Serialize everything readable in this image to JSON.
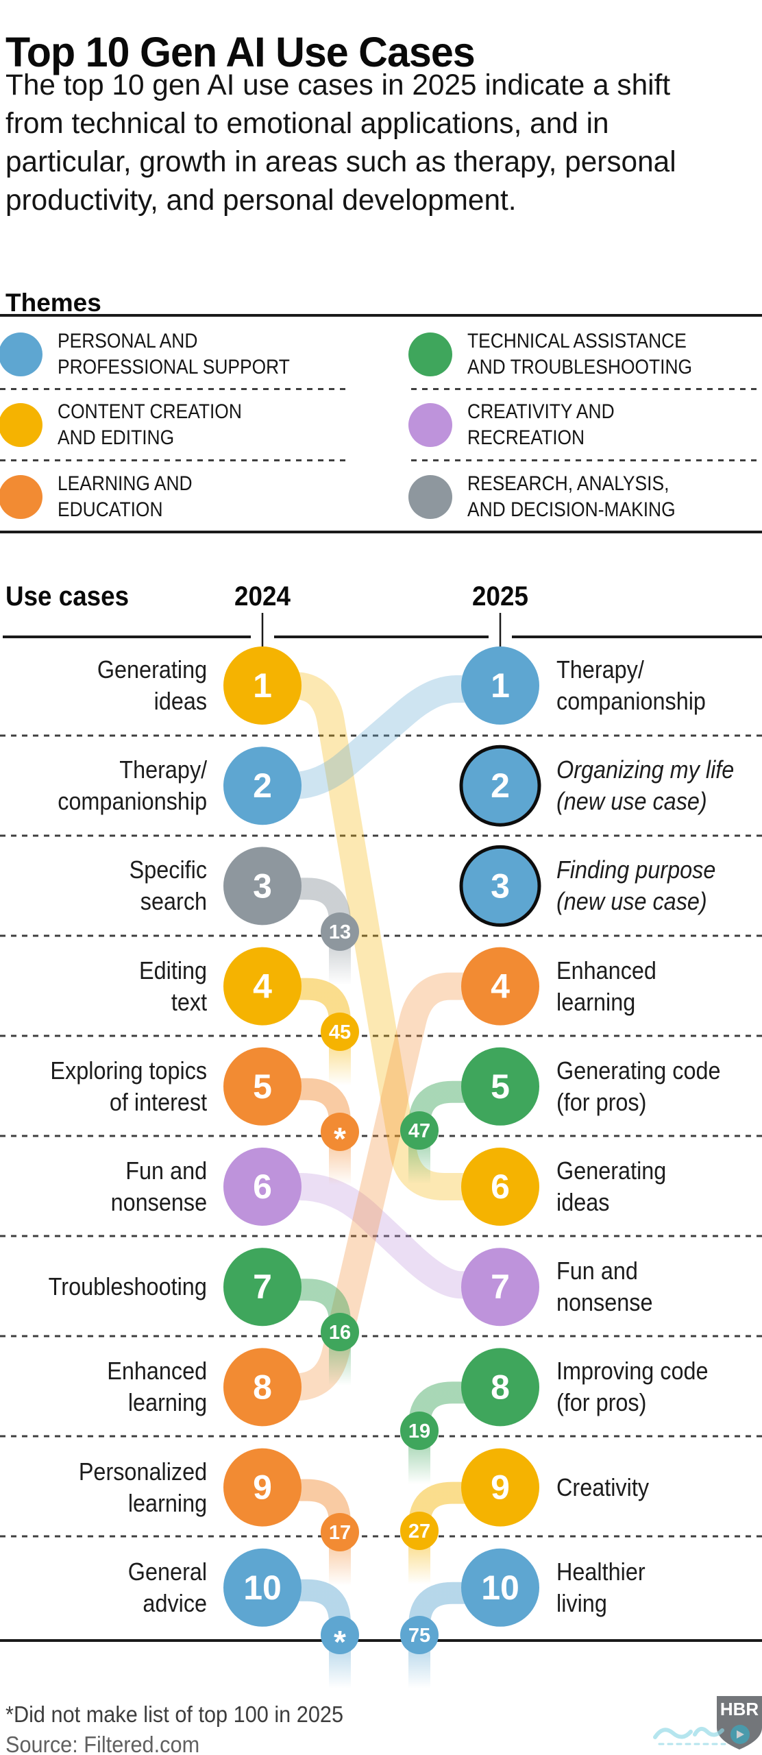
{
  "page": {
    "title": "Top 10 Gen AI Use Cases",
    "intro_lines": [
      "The top 10 gen AI use cases in 2025 indicate a shift",
      "from technical to emotional applications, and in",
      "particular, growth in areas such as therapy, personal",
      "productivity, and personal development."
    ],
    "themes_heading": "Themes",
    "footnote": "*Did not make list of top 100 in 2025",
    "source": "Source: Filtered.com",
    "logo_text": "HBR"
  },
  "legend": {
    "items": [
      {
        "line1": "PERSONAL AND",
        "line2": "PROFESSIONAL SUPPORT",
        "theme": "personal"
      },
      {
        "line1": "CONTENT CREATION",
        "line2": "AND EDITING",
        "theme": "content"
      },
      {
        "line1": "LEARNING AND",
        "line2": "EDUCATION",
        "theme": "learning"
      },
      {
        "line1": "TECHNICAL ASSISTANCE",
        "line2": "AND TROUBLESHOOTING",
        "theme": "technical"
      },
      {
        "line1": "CREATIVITY AND",
        "line2": "RECREATION",
        "theme": "creativity"
      },
      {
        "line1": "RESEARCH, ANALYSIS,",
        "line2": "AND DECISION-MAKING",
        "theme": "research"
      }
    ]
  },
  "chart_data": {
    "type": "slope-bump-ranking",
    "title": "Top 10 Gen AI Use Cases",
    "columns": {
      "label": "Use cases",
      "left_year": "2024",
      "right_year": "2025"
    },
    "theme_colors": {
      "personal": "#5EA6D1",
      "content": "#F5B301",
      "learning": "#F28B33",
      "technical": "#3FA65C",
      "creativity": "#BE93DB",
      "research": "#8E979E"
    },
    "left_2024": [
      {
        "rank": 1,
        "label_lines": [
          "Generating",
          "ideas"
        ],
        "theme": "content",
        "moved_to_2025_rank": 6
      },
      {
        "rank": 2,
        "label_lines": [
          "Therapy/",
          "companionship"
        ],
        "theme": "personal",
        "moved_to_2025_rank": 1
      },
      {
        "rank": 3,
        "label_lines": [
          "Specific",
          "search"
        ],
        "theme": "research",
        "fell_to_2025": "13"
      },
      {
        "rank": 4,
        "label_lines": [
          "Editing",
          "text"
        ],
        "theme": "content",
        "fell_to_2025": "45"
      },
      {
        "rank": 5,
        "label_lines": [
          "Exploring topics",
          "of interest"
        ],
        "theme": "learning",
        "fell_to_2025": "*"
      },
      {
        "rank": 6,
        "label_lines": [
          "Fun and",
          "nonsense"
        ],
        "theme": "creativity",
        "moved_to_2025_rank": 7
      },
      {
        "rank": 7,
        "label_lines": [
          "Troubleshooting"
        ],
        "theme": "technical",
        "fell_to_2025": "16"
      },
      {
        "rank": 8,
        "label_lines": [
          "Enhanced",
          "learning"
        ],
        "theme": "learning",
        "moved_to_2025_rank": 4
      },
      {
        "rank": 9,
        "label_lines": [
          "Personalized",
          "learning"
        ],
        "theme": "learning",
        "fell_to_2025": "17"
      },
      {
        "rank": 10,
        "label_lines": [
          "General",
          "advice"
        ],
        "theme": "personal",
        "fell_to_2025": "*"
      }
    ],
    "right_2025": [
      {
        "rank": 1,
        "label_lines": [
          "Therapy/",
          "companionship"
        ],
        "theme": "personal"
      },
      {
        "rank": 2,
        "label_lines": [
          "Organizing my life",
          "(new use case)"
        ],
        "theme": "personal",
        "new_use_case": true
      },
      {
        "rank": 3,
        "label_lines": [
          "Finding purpose",
          "(new use case)"
        ],
        "theme": "personal",
        "new_use_case": true
      },
      {
        "rank": 4,
        "label_lines": [
          "Enhanced",
          "learning"
        ],
        "theme": "learning"
      },
      {
        "rank": 5,
        "label_lines": [
          "Generating code",
          "(for pros)"
        ],
        "theme": "technical",
        "rose_from_2024": "47"
      },
      {
        "rank": 6,
        "label_lines": [
          "Generating",
          "ideas"
        ],
        "theme": "content"
      },
      {
        "rank": 7,
        "label_lines": [
          "Fun and",
          "nonsense"
        ],
        "theme": "creativity"
      },
      {
        "rank": 8,
        "label_lines": [
          "Improving code",
          "(for pros)"
        ],
        "theme": "technical",
        "rose_from_2024": "19"
      },
      {
        "rank": 9,
        "label_lines": [
          "Creativity"
        ],
        "theme": "content",
        "rose_from_2024": "27"
      },
      {
        "rank": 10,
        "label_lines": [
          "Healthier",
          "living"
        ],
        "theme": "personal",
        "rose_from_2024": "75"
      }
    ],
    "footnote": "*Did not make list of top 100 in 2025",
    "source": "Source: Filtered.com"
  }
}
